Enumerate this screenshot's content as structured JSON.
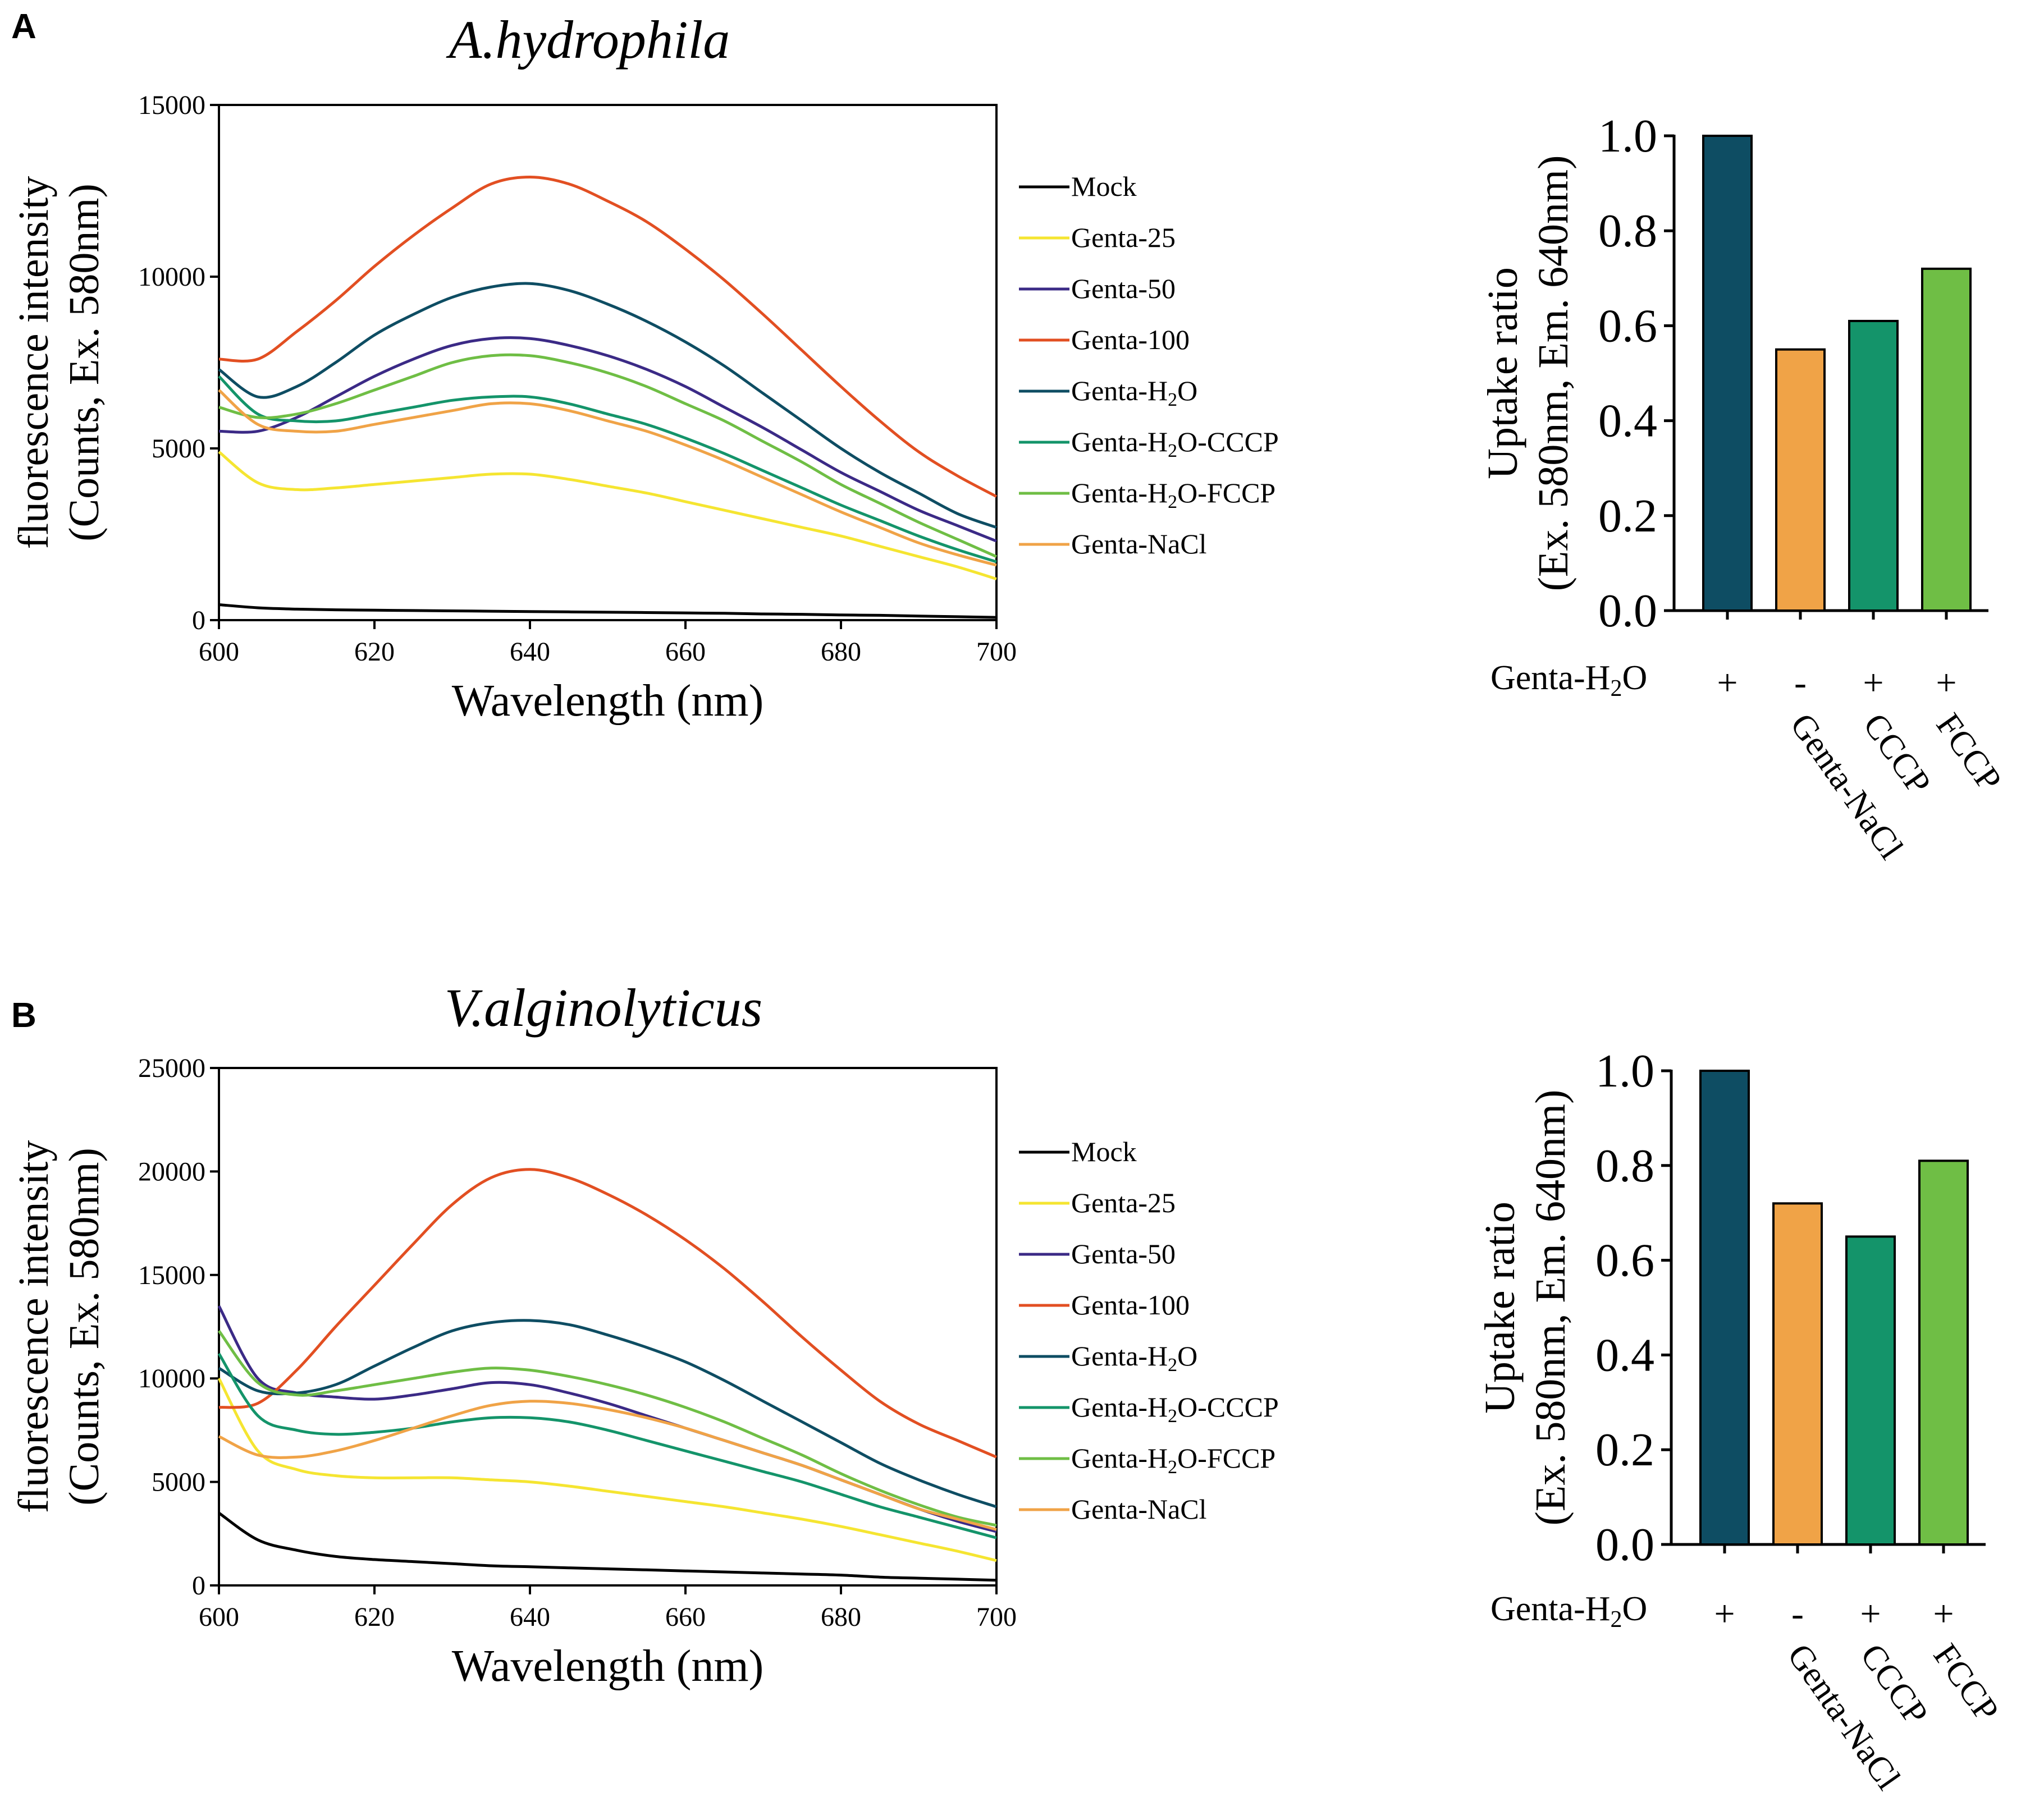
{
  "colors": {
    "mock": "#000000",
    "genta25": "#f5e531",
    "genta50": "#3b2a86",
    "genta100": "#e24f22",
    "gentaH2O": "#0e4d63",
    "gentaCCCP": "#14946a",
    "gentaFCCP": "#6fbe45",
    "gentaNaCl": "#f0a347",
    "axis": "#000000"
  },
  "panels": [
    {
      "label": "A",
      "species": "A.hydrophila",
      "line_chart": {
        "type": "line",
        "title": "A.hydrophila",
        "xlabel": "Wavelength (nm)",
        "ylabel_line1": "fluorescence   intensity",
        "ylabel_line2": "(Counts, Ex. 580nm)",
        "xlim": [
          600,
          700
        ],
        "ylim": [
          0,
          15000
        ],
        "xticks": [
          600,
          620,
          640,
          660,
          680,
          700
        ],
        "yticks": [
          0,
          5000,
          10000,
          15000
        ],
        "x": [
          600,
          605,
          610,
          615,
          620,
          625,
          630,
          635,
          640,
          645,
          650,
          655,
          660,
          665,
          670,
          675,
          680,
          685,
          690,
          695,
          700
        ],
        "series": [
          {
            "name": "Mock",
            "key": "mock",
            "values": [
              450,
              360,
              320,
              300,
              290,
              280,
              270,
              260,
              250,
              240,
              230,
              220,
              210,
              200,
              180,
              170,
              150,
              140,
              120,
              100,
              80
            ]
          },
          {
            "name": "Genta-25",
            "key": "genta25",
            "values": [
              4900,
              4000,
              3800,
              3850,
              3950,
              4050,
              4150,
              4250,
              4250,
              4100,
              3900,
              3700,
              3450,
              3200,
              2950,
              2700,
              2450,
              2150,
              1850,
              1550,
              1200
            ]
          },
          {
            "name": "Genta-50",
            "key": "genta50",
            "values": [
              5500,
              5500,
              5900,
              6500,
              7100,
              7600,
              8000,
              8200,
              8200,
              8000,
              7700,
              7300,
              6800,
              6200,
              5600,
              4950,
              4300,
              3750,
              3200,
              2750,
              2300
            ]
          },
          {
            "name": "Genta-100",
            "key": "genta100",
            "values": [
              7600,
              7600,
              8400,
              9300,
              10300,
              11200,
              12000,
              12700,
              12900,
              12700,
              12200,
              11600,
              10800,
              9900,
              8900,
              7850,
              6800,
              5800,
              4900,
              4200,
              3600
            ]
          },
          {
            "name": "Genta-H₂O",
            "key": "gentaH2O",
            "values": [
              7300,
              6500,
              6800,
              7500,
              8300,
              8900,
              9400,
              9700,
              9800,
              9600,
              9200,
              8700,
              8100,
              7400,
              6600,
              5800,
              5000,
              4300,
              3700,
              3100,
              2700
            ]
          },
          {
            "name": "Genta-H₂O-CCCP",
            "key": "gentaCCCP",
            "values": [
              7100,
              6000,
              5800,
              5800,
              6000,
              6200,
              6400,
              6500,
              6500,
              6300,
              6000,
              5700,
              5300,
              4850,
              4350,
              3850,
              3350,
              2900,
              2450,
              2050,
              1700
            ]
          },
          {
            "name": "Genta-H₂O-FCCP",
            "key": "gentaFCCP",
            "values": [
              6200,
              5900,
              6000,
              6300,
              6700,
              7100,
              7500,
              7700,
              7700,
              7500,
              7200,
              6800,
              6300,
              5800,
              5200,
              4600,
              3950,
              3400,
              2850,
              2350,
              1850
            ]
          },
          {
            "name": "Genta-NaCl",
            "key": "gentaNaCl",
            "values": [
              6700,
              5700,
              5500,
              5500,
              5700,
              5900,
              6100,
              6300,
              6300,
              6100,
              5800,
              5500,
              5100,
              4650,
              4150,
              3650,
              3150,
              2700,
              2250,
              1900,
              1600
            ]
          }
        ]
      },
      "bar_chart": {
        "type": "bar",
        "ylabel_line1": "Uptake ratio",
        "ylabel_line2": "(Ex. 580nm, Em. 640nm)",
        "ylim": [
          0,
          1.0
        ],
        "yticks": [
          "0.0",
          "0.2",
          "0.4",
          "0.6",
          "0.8",
          "1.0"
        ],
        "row_label": "Genta-H₂O",
        "categories": [
          {
            "sign": "+",
            "label": "",
            "value": 1.0,
            "key": "gentaH2O"
          },
          {
            "sign": "-",
            "label": "Genta-NaCl",
            "value": 0.55,
            "key": "gentaNaCl"
          },
          {
            "sign": "+",
            "label": "CCCP",
            "value": 0.61,
            "key": "gentaCCCP"
          },
          {
            "sign": "+",
            "label": "FCCP",
            "value": 0.72,
            "key": "gentaFCCP"
          }
        ]
      }
    },
    {
      "label": "B",
      "species": "V.alginolyticus",
      "line_chart": {
        "type": "line",
        "title": "V.alginolyticus",
        "xlabel": "Wavelength (nm)",
        "ylabel_line1": "fluorescence   intensity",
        "ylabel_line2": "(Counts, Ex. 580nm)",
        "xlim": [
          600,
          700
        ],
        "ylim": [
          0,
          25000
        ],
        "xticks": [
          600,
          620,
          640,
          660,
          680,
          700
        ],
        "yticks": [
          0,
          5000,
          10000,
          15000,
          20000,
          25000
        ],
        "x": [
          600,
          605,
          610,
          615,
          620,
          625,
          630,
          635,
          640,
          645,
          650,
          655,
          660,
          665,
          670,
          675,
          680,
          685,
          690,
          695,
          700
        ],
        "series": [
          {
            "name": "Mock",
            "key": "mock",
            "values": [
              3500,
              2200,
              1700,
              1400,
              1250,
              1150,
              1050,
              950,
              900,
              850,
              800,
              750,
              700,
              650,
              600,
              550,
              500,
              400,
              350,
              300,
              250
            ]
          },
          {
            "name": "Genta-25",
            "key": "genta25",
            "values": [
              10000,
              6500,
              5600,
              5300,
              5200,
              5200,
              5200,
              5100,
              5000,
              4800,
              4550,
              4300,
              4050,
              3800,
              3500,
              3200,
              2850,
              2450,
              2050,
              1650,
              1200
            ]
          },
          {
            "name": "Genta-50",
            "key": "genta50",
            "values": [
              13500,
              10000,
              9300,
              9100,
              9000,
              9200,
              9500,
              9800,
              9700,
              9300,
              8800,
              8200,
              7600,
              7000,
              6400,
              5800,
              5100,
              4400,
              3700,
              3100,
              2600
            ]
          },
          {
            "name": "Genta-100",
            "key": "genta100",
            "values": [
              8600,
              8800,
              10400,
              12500,
              14500,
              16500,
              18400,
              19700,
              20100,
              19700,
              18900,
              17900,
              16700,
              15300,
              13700,
              12000,
              10400,
              8900,
              7800,
              7000,
              6200
            ]
          },
          {
            "name": "Genta-H₂O",
            "key": "gentaH2O",
            "values": [
              10500,
              9400,
              9300,
              9700,
              10600,
              11500,
              12300,
              12700,
              12800,
              12600,
              12100,
              11500,
              10800,
              9900,
              8900,
              7900,
              6900,
              5900,
              5100,
              4400,
              3800
            ]
          },
          {
            "name": "Genta-H₂O-CCCP",
            "key": "gentaCCCP",
            "values": [
              11200,
              8200,
              7500,
              7300,
              7400,
              7600,
              7900,
              8100,
              8100,
              7900,
              7500,
              7000,
              6500,
              6000,
              5500,
              5000,
              4400,
              3800,
              3300,
              2800,
              2300
            ]
          },
          {
            "name": "Genta-H₂O-FCCP",
            "key": "gentaFCCP",
            "values": [
              12300,
              9800,
              9200,
              9400,
              9700,
              10000,
              10300,
              10500,
              10400,
              10100,
              9700,
              9200,
              8600,
              7900,
              7100,
              6300,
              5400,
              4600,
              3900,
              3300,
              2900
            ]
          },
          {
            "name": "Genta-NaCl",
            "key": "gentaNaCl",
            "values": [
              7200,
              6300,
              6200,
              6500,
              7000,
              7600,
              8200,
              8700,
              8900,
              8800,
              8500,
              8100,
              7600,
              7000,
              6400,
              5800,
              5100,
              4400,
              3700,
              3200,
              2700
            ]
          }
        ]
      },
      "bar_chart": {
        "type": "bar",
        "ylabel_line1": "Uptake ratio",
        "ylabel_line2": "(Ex. 580nm, Em. 640nm)",
        "ylim": [
          0,
          1.0
        ],
        "yticks": [
          "0.0",
          "0.2",
          "0.4",
          "0.6",
          "0.8",
          "1.0"
        ],
        "row_label": "Genta-H₂O",
        "categories": [
          {
            "sign": "+",
            "label": "",
            "value": 1.0,
            "key": "gentaH2O"
          },
          {
            "sign": "-",
            "label": "Genta-NaCl",
            "value": 0.72,
            "key": "gentaNaCl"
          },
          {
            "sign": "+",
            "label": "CCCP",
            "value": 0.65,
            "key": "gentaCCCP"
          },
          {
            "sign": "+",
            "label": "FCCP",
            "value": 0.81,
            "key": "gentaFCCP"
          }
        ]
      }
    }
  ]
}
